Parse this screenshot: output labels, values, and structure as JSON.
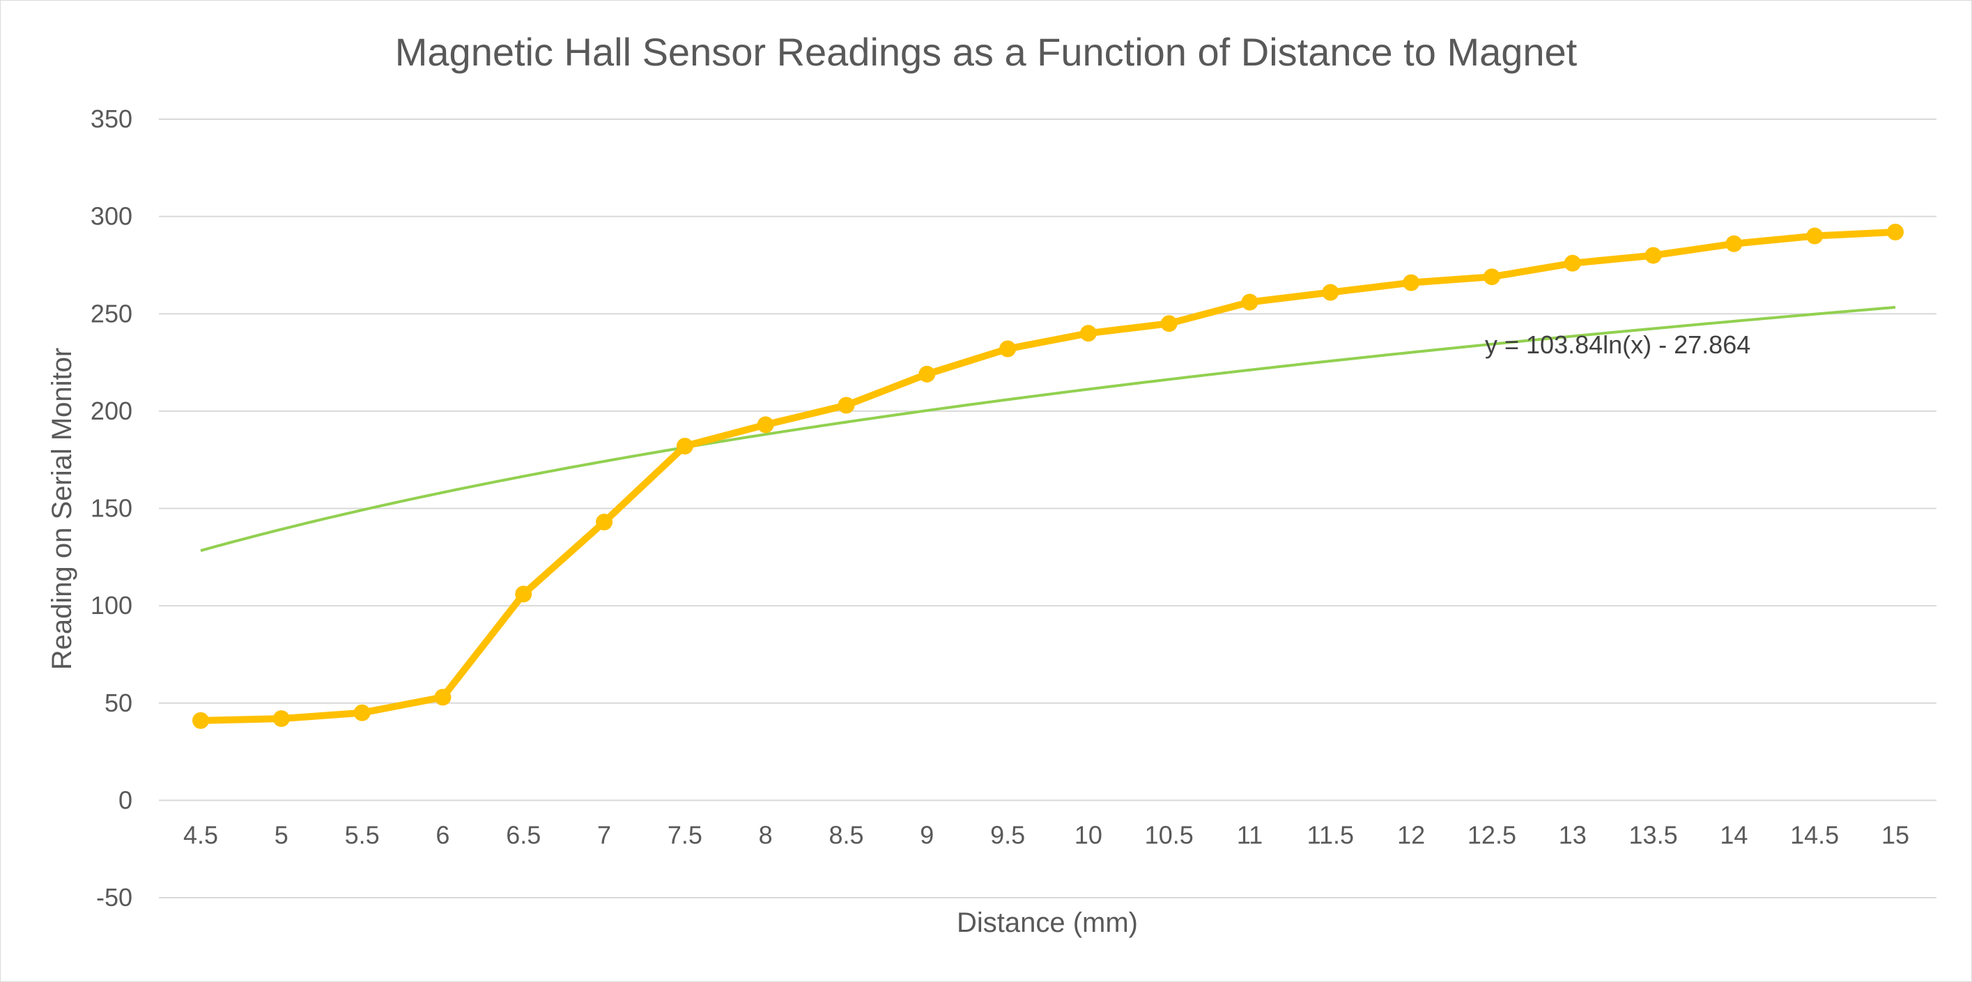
{
  "chart_data": {
    "type": "line",
    "title": "Magnetic Hall Sensor Readings as a Function of Distance to Magnet",
    "xlabel": "Distance (mm)",
    "ylabel": "Reading on Serial Monitor",
    "categories": [
      "4.5",
      "5",
      "5.5",
      "6",
      "6.5",
      "7",
      "7.5",
      "8",
      "8.5",
      "9",
      "9.5",
      "10",
      "10.5",
      "11",
      "11.5",
      "12",
      "12.5",
      "13",
      "13.5",
      "14",
      "14.5",
      "15"
    ],
    "y_ticks": [
      "-50",
      "0",
      "50",
      "100",
      "150",
      "200",
      "250",
      "300",
      "350"
    ],
    "ylim": [
      -50,
      350
    ],
    "grid": true,
    "legend": "none",
    "series": [
      {
        "values": [
          41,
          42,
          45,
          53,
          106,
          143,
          182,
          193,
          203,
          219,
          232,
          240,
          245,
          256,
          261,
          266,
          269,
          276,
          280,
          286,
          290,
          292
        ],
        "color": "#FFC000",
        "marker": "circle"
      }
    ],
    "trendline": {
      "type": "logarithmic",
      "equation": "y = 103.84ln(x) - 27.864",
      "a": 103.84,
      "b": -27.864,
      "color": "#92D050"
    }
  }
}
